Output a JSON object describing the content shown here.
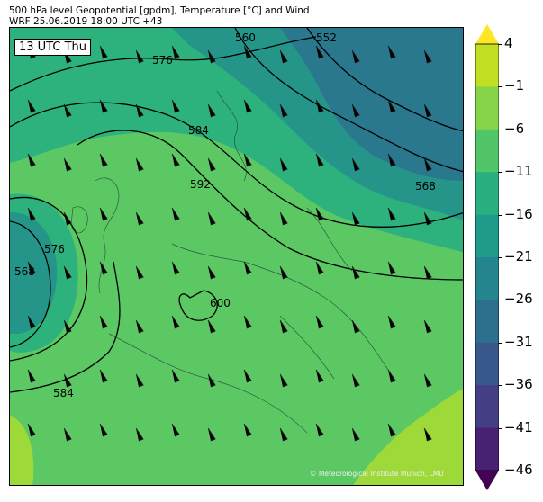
{
  "header": {
    "line1": "500 hPa level Geopotential [gpdm], Temperature [°C] and Wind",
    "line2": "WRF 25.06.2019 18:00 UTC +43"
  },
  "time_box": "13 UTC Thu",
  "credit": "© Meteorological Institute Munich, LMU",
  "contour_labels": [
    "552",
    "560",
    "568",
    "568",
    "576",
    "576",
    "584",
    "584",
    "592",
    "600"
  ],
  "colorbar": {
    "labels": [
      "4",
      "−1",
      "−6",
      "−11",
      "−16",
      "−21",
      "−26",
      "−31",
      "−36",
      "−41",
      "−46"
    ],
    "colors": [
      "#fde725",
      "#c2df23",
      "#86d549",
      "#52c569",
      "#2ab07f",
      "#1e9b8a",
      "#25858e",
      "#2d708e",
      "#38588c",
      "#433e85",
      "#482173",
      "#440154"
    ]
  },
  "palette": {
    "warm": "#9ed93a",
    "mid": "#5cc863",
    "cool": "#2db27d",
    "cold": "#25958a",
    "colder": "#2a788e"
  }
}
